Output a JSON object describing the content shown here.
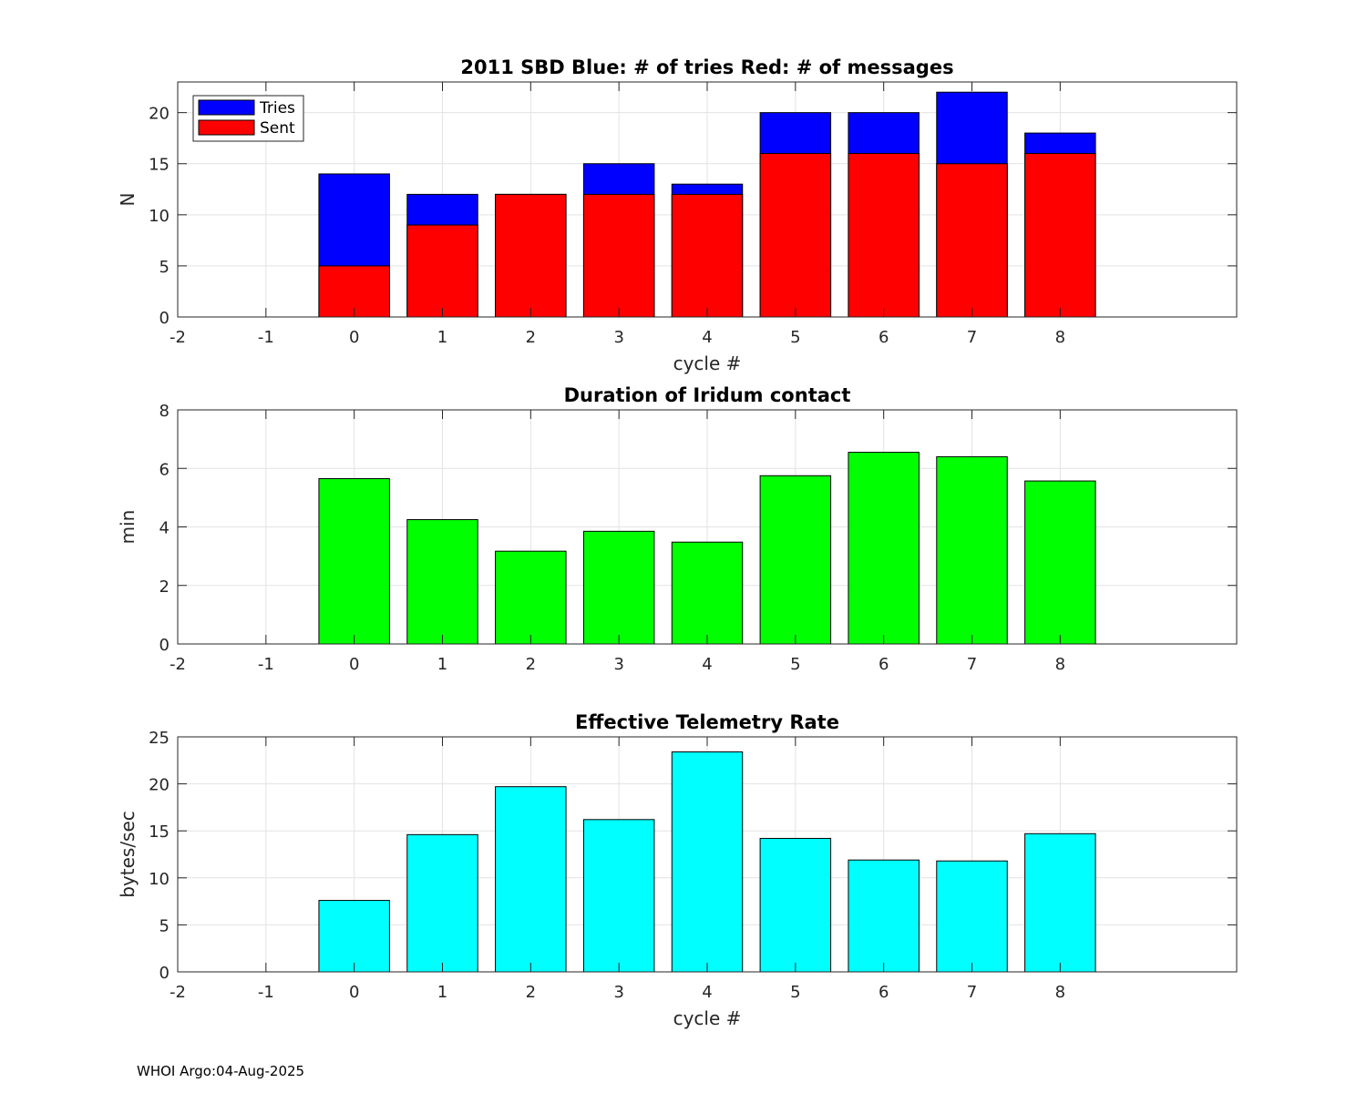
{
  "footer": "WHOI Argo:04-Aug-2025",
  "chart_data": [
    {
      "type": "bar",
      "stacked_overlay": true,
      "title": "2011 SBD  Blue: # of tries   Red: # of messages",
      "xlabel": "cycle #",
      "ylabel": "N",
      "xlim": [
        -2,
        10
      ],
      "ylim": [
        0,
        23
      ],
      "xticks": [
        "-2",
        "-1",
        "0",
        "1",
        "2",
        "3",
        "4",
        "5",
        "6",
        "7",
        "8"
      ],
      "yticks": [
        "0",
        "5",
        "10",
        "15",
        "20"
      ],
      "grid": true,
      "legend_position": "top-left",
      "categories": [
        0,
        1,
        2,
        3,
        4,
        5,
        6,
        7,
        8
      ],
      "series": [
        {
          "name": "Tries",
          "color": "#0000ff",
          "values": [
            14,
            12,
            12,
            15,
            13,
            20,
            20,
            22,
            18
          ]
        },
        {
          "name": "Sent",
          "color": "#ff0000",
          "values": [
            5,
            9,
            12,
            12,
            12,
            16,
            16,
            15,
            16
          ]
        }
      ]
    },
    {
      "type": "bar",
      "title": "Duration of Iridum contact",
      "xlabel": "",
      "ylabel": "min",
      "xlim": [
        -2,
        10
      ],
      "ylim": [
        0,
        8
      ],
      "xticks": [
        "-2",
        "-1",
        "0",
        "1",
        "2",
        "3",
        "4",
        "5",
        "6",
        "7",
        "8"
      ],
      "yticks": [
        "0",
        "2",
        "4",
        "6",
        "8"
      ],
      "grid": true,
      "categories": [
        0,
        1,
        2,
        3,
        4,
        5,
        6,
        7,
        8
      ],
      "series": [
        {
          "name": "Duration",
          "color": "#00ff00",
          "values": [
            5.65,
            4.25,
            3.17,
            3.85,
            3.48,
            5.75,
            6.55,
            6.4,
            5.57
          ]
        }
      ]
    },
    {
      "type": "bar",
      "title": "Effective Telemetry Rate",
      "xlabel": "cycle #",
      "ylabel": "bytes/sec",
      "xlim": [
        -2,
        10
      ],
      "ylim": [
        0,
        25
      ],
      "xticks": [
        "-2",
        "-1",
        "0",
        "1",
        "2",
        "3",
        "4",
        "5",
        "6",
        "7",
        "8"
      ],
      "yticks": [
        "0",
        "5",
        "10",
        "15",
        "20",
        "25"
      ],
      "grid": true,
      "categories": [
        0,
        1,
        2,
        3,
        4,
        5,
        6,
        7,
        8
      ],
      "series": [
        {
          "name": "Rate",
          "color": "#00ffff",
          "values": [
            7.6,
            14.6,
            19.7,
            16.2,
            23.4,
            14.2,
            11.9,
            11.8,
            14.7
          ]
        }
      ]
    }
  ]
}
